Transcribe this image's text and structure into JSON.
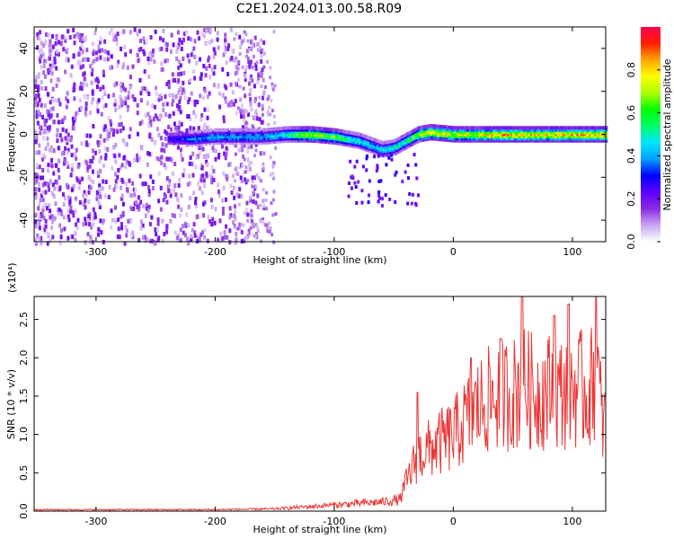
{
  "title": "C2E1.2024.013.00.58.R09",
  "chart_data": [
    {
      "type": "heatmap",
      "xlabel": "Height of straight line (km)",
      "ylabel": "Frequency (Hz)",
      "xlim": [
        -352,
        128
      ],
      "ylim": [
        -50,
        50
      ],
      "xticks": [
        -300,
        -200,
        -100,
        0,
        100
      ],
      "yticks": [
        -40,
        -20,
        0,
        20,
        40
      ],
      "colorbar": {
        "label": "Normalized spectral amplitude",
        "range": [
          0.0,
          1.0
        ],
        "ticks": [
          "0.0",
          "0.2",
          "0.4",
          "0.6",
          "0.8"
        ],
        "tick_values": [
          0.0,
          0.2,
          0.4,
          0.6,
          0.8
        ],
        "colormap": [
          "#ffffff",
          "#c9a6f2",
          "#8a2be2",
          "#5b00ff",
          "#0000ff",
          "#00a0ff",
          "#00e5ff",
          "#00ff66",
          "#00ff00",
          "#aaff00",
          "#ffff00",
          "#ffa500",
          "#ff2000",
          "#ff0050"
        ]
      },
      "signal_track": {
        "x": [
          -240,
          -220,
          -200,
          -180,
          -160,
          -140,
          -120,
          -100,
          -90,
          -80,
          -70,
          -60,
          -50,
          -40,
          -30,
          -20,
          0,
          20,
          40,
          60,
          80,
          100,
          120,
          128
        ],
        "freq": [
          -2,
          -2,
          -1,
          -1,
          -1,
          0,
          0,
          -1,
          -2,
          -3,
          -5,
          -7,
          -6,
          -3,
          0,
          1,
          0,
          0,
          0,
          0,
          0,
          0,
          0,
          0
        ],
        "amplitude": [
          0.3,
          0.4,
          0.45,
          0.45,
          0.45,
          0.55,
          0.8,
          0.7,
          0.6,
          0.55,
          0.5,
          0.5,
          0.55,
          0.6,
          0.75,
          0.85,
          0.8,
          0.8,
          0.9,
          0.9,
          0.85,
          0.9,
          0.9,
          0.9
        ]
      },
      "noise_region": {
        "x_range": [
          -352,
          -160
        ],
        "density": "high"
      }
    },
    {
      "type": "line",
      "xlabel": "Height of straight line (km)",
      "ylabel": "SNR (10 * v/v)",
      "multiplier_label": "(x10⁴)",
      "xlim": [
        -352,
        128
      ],
      "ylim": [
        0,
        2.8
      ],
      "xticks": [
        -300,
        -200,
        -100,
        0,
        100
      ],
      "yticks": [
        0.0,
        0.5,
        1.0,
        1.5,
        2.0,
        2.5
      ],
      "ytick_labels": [
        "0.0",
        "0.5",
        "1.0",
        "1.5",
        "2.0",
        "2.5"
      ],
      "color": "#ee3333",
      "envelope": {
        "x": [
          -352,
          -200,
          -150,
          -120,
          -100,
          -80,
          -60,
          -45,
          -40,
          -35,
          -30,
          -20,
          -10,
          0,
          10,
          20,
          30,
          40,
          50,
          60,
          70,
          80,
          90,
          100,
          110,
          115,
          120,
          125,
          128
        ],
        "y": [
          0.02,
          0.02,
          0.03,
          0.06,
          0.08,
          0.1,
          0.12,
          0.15,
          0.4,
          0.6,
          0.8,
          0.9,
          1.0,
          1.1,
          1.3,
          1.5,
          1.6,
          1.7,
          1.7,
          1.8,
          1.7,
          1.75,
          1.7,
          1.8,
          1.75,
          1.7,
          2.2,
          1.3,
          1.3
        ]
      },
      "peaks": [
        {
          "x": 58,
          "y": 2.8
        },
        {
          "x": 120,
          "y": 2.8
        },
        {
          "x": 97,
          "y": 2.7
        },
        {
          "x": 85,
          "y": 2.55
        },
        {
          "x": 40,
          "y": 2.25
        },
        {
          "x": 15,
          "y": 2.0
        },
        {
          "x": -30,
          "y": 1.55
        }
      ]
    }
  ]
}
